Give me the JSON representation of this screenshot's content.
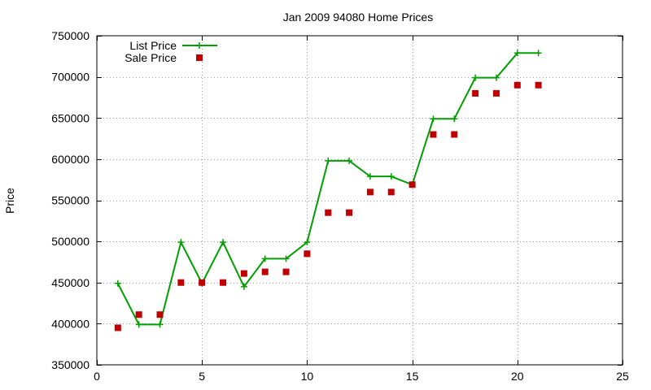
{
  "chart_data": {
    "type": "line",
    "title": "Jan 2009 94080 Home Prices",
    "xlabel": "",
    "ylabel": "Price",
    "xlim": [
      0,
      25
    ],
    "ylim": [
      350000,
      750000
    ],
    "x_ticks": [
      0,
      5,
      10,
      15,
      20,
      25
    ],
    "y_ticks": [
      350000,
      400000,
      450000,
      500000,
      550000,
      600000,
      650000,
      700000,
      750000
    ],
    "grid": true,
    "legend_position": "top-left",
    "series": [
      {
        "name": "List Price",
        "style": "linespoints",
        "marker": "plus",
        "color": "#00a000",
        "points": [
          [
            1,
            449000
          ],
          [
            2,
            399000
          ],
          [
            3,
            399000
          ],
          [
            4,
            499000
          ],
          [
            5,
            449000
          ],
          [
            6,
            499000
          ],
          [
            7,
            445000
          ],
          [
            8,
            479000
          ],
          [
            9,
            479000
          ],
          [
            10,
            499000
          ],
          [
            11,
            598000
          ],
          [
            12,
            598000
          ],
          [
            13,
            579000
          ],
          [
            14,
            579000
          ],
          [
            15,
            569000
          ],
          [
            16,
            649000
          ],
          [
            17,
            649000
          ],
          [
            18,
            699000
          ],
          [
            19,
            699000
          ],
          [
            20,
            729000
          ],
          [
            21,
            729000
          ]
        ]
      },
      {
        "name": "Sale Price",
        "style": "points",
        "marker": "square",
        "color": "#c00000",
        "points": [
          [
            1,
            395000
          ],
          [
            2,
            411000
          ],
          [
            3,
            411000
          ],
          [
            4,
            450000
          ],
          [
            5,
            450000
          ],
          [
            6,
            450000
          ],
          [
            7,
            461000
          ],
          [
            8,
            463000
          ],
          [
            9,
            463000
          ],
          [
            10,
            485000
          ],
          [
            11,
            535000
          ],
          [
            12,
            535000
          ],
          [
            13,
            560000
          ],
          [
            14,
            560000
          ],
          [
            15,
            569000
          ],
          [
            16,
            630000
          ],
          [
            17,
            630000
          ],
          [
            18,
            680000
          ],
          [
            19,
            680000
          ],
          [
            20,
            690000
          ],
          [
            21,
            690000
          ]
        ]
      }
    ]
  }
}
